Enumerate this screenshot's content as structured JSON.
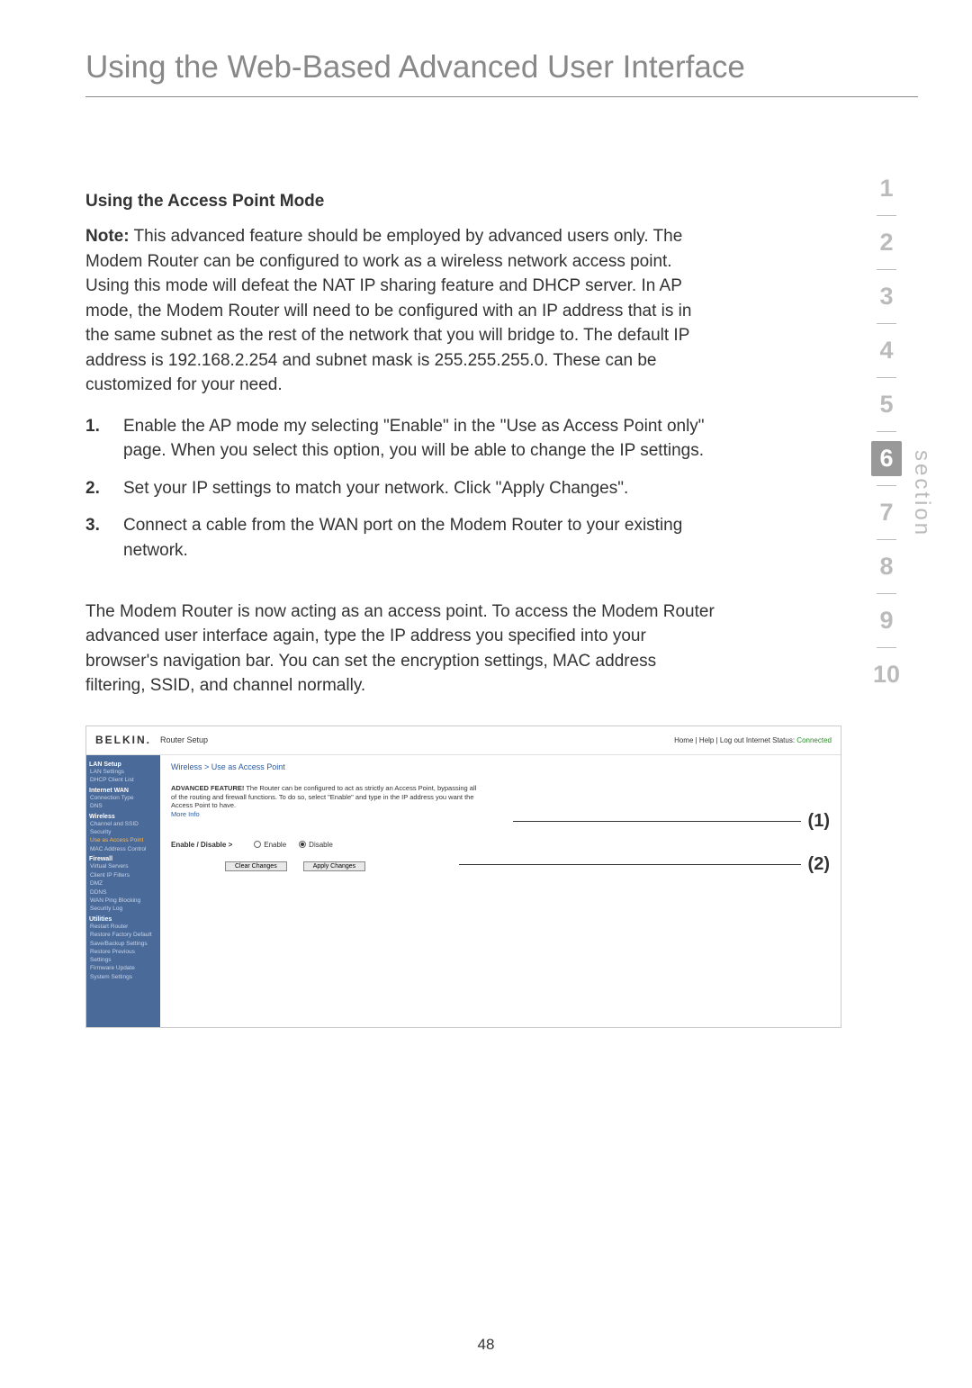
{
  "page": {
    "title": "Using the Web-Based Advanced User Interface",
    "number": "48"
  },
  "nav": {
    "label": "section",
    "items": [
      "1",
      "2",
      "3",
      "4",
      "5",
      "6",
      "7",
      "8",
      "9",
      "10"
    ],
    "active": "6"
  },
  "section": {
    "heading": "Using the Access Point Mode",
    "note_label": "Note:",
    "note_text": " This advanced feature should be employed by advanced users only. The Modem Router can be configured to work as a wireless network access point. Using this mode will defeat the NAT IP sharing feature and DHCP server. In AP mode, the Modem Router will need to be configured with an IP address that is in the same subnet as the rest of the network that you will bridge to. The default IP address is 192.168.2.254 and subnet mask is 255.255.255.0. These can be customized for your need.",
    "steps": [
      {
        "num": "1.",
        "text": "Enable the AP mode my selecting \"Enable\" in the \"Use as Access Point only\" page. When you select this option, you will be able to change the IP settings."
      },
      {
        "num": "2.",
        "text": "Set your IP settings to match your network. Click \"Apply Changes\"."
      },
      {
        "num": "3.",
        "text": "Connect a cable from the WAN port on the Modem Router to your existing network."
      }
    ],
    "footer": "The Modem Router is now acting as an access point. To access the Modem Router advanced user interface again, type the IP address you specified into your browser's navigation bar. You can set the encryption settings, MAC address filtering, SSID, and channel normally."
  },
  "screenshot": {
    "brand": "BELKIN.",
    "subtitle": "Router Setup",
    "status_prefix": "Home | Help | Log out   Internet Status: ",
    "status_value": "Connected",
    "breadcrumb": "Wireless > Use as Access Point",
    "desc_bold": "ADVANCED FEATURE!",
    "desc_text": " The Router can be configured to act as strictly an Access Point, bypassing all of the routing and firewall functions. To do so, select \"Enable\" and type in the IP address you want the Access Point to have.",
    "more_info": "More Info",
    "enable_label": "Enable / Disable >",
    "radio_enable": "Enable",
    "radio_disable": "Disable",
    "btn_clear": "Clear Changes",
    "btn_apply": "Apply Changes",
    "callout1": "(1)",
    "callout2": "(2)",
    "sidebar": {
      "groups": [
        {
          "cat": "LAN Setup",
          "items": [
            "LAN Settings",
            "DHCP Client List"
          ]
        },
        {
          "cat": "Internet WAN",
          "items": [
            "Connection Type",
            "DNS"
          ]
        },
        {
          "cat": "Wireless",
          "items": [
            "Channel and SSID",
            "Security",
            {
              "text": "Use as Access Point",
              "hl": true
            },
            "MAC Address Control"
          ]
        },
        {
          "cat": "Firewall",
          "items": [
            "Virtual Servers",
            "Client IP Filters",
            "DMZ",
            "DDNS",
            "WAN Ping Blocking",
            "Security Log"
          ]
        },
        {
          "cat": "Utilities",
          "items": [
            "Restart Router",
            "Restore Factory Default",
            "Save/Backup Settings",
            "Restore Previous Settings",
            "Firmware Update",
            "System Settings"
          ]
        }
      ]
    }
  }
}
